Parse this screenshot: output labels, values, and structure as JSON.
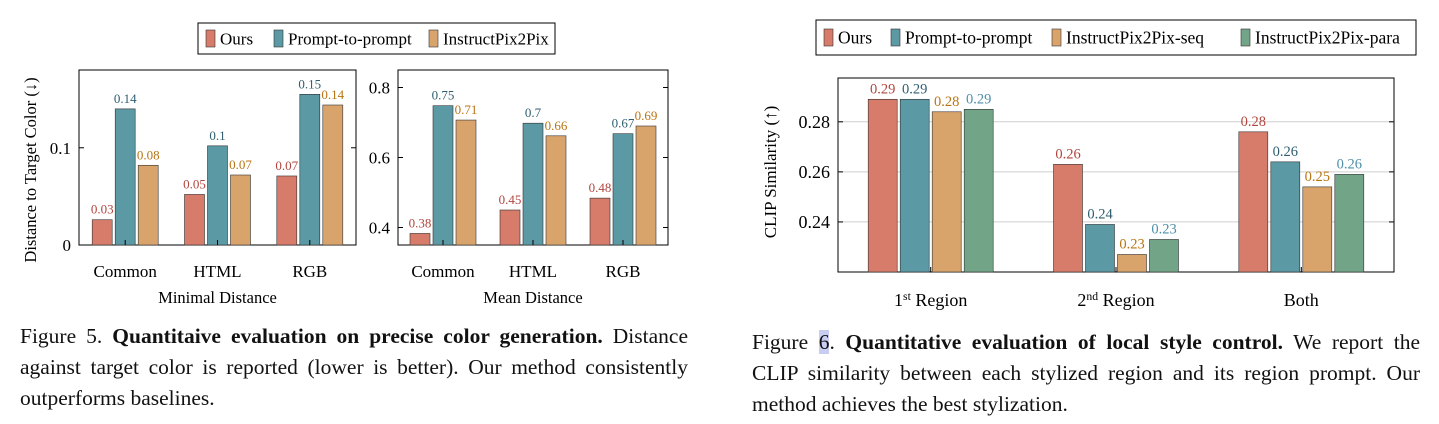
{
  "figure5": {
    "legend": [
      "Ours",
      "Prompt-to-prompt",
      "InstructPix2Pix"
    ],
    "y_label": "Distance to Target Color (↓)",
    "caption": {
      "prefix": "Figure 5.",
      "title": "Quantitaive evaluation on precise color generation.",
      "body": "Distance against target color is reported (lower is better). Our method consistently outperforms baselines."
    }
  },
  "figure6": {
    "legend": [
      "Ours",
      "Prompt-to-prompt",
      "InstructPix2Pix-seq",
      "InstructPix2Pix-para"
    ],
    "y_label": "CLIP Similarity (↑)",
    "caption": {
      "prefix": "Figure",
      "number": "6",
      "title": "Quantitative evaluation of local style control.",
      "body": "We report the CLIP similarity between each stylized region and its region prompt. Our method achieves the best stylization."
    }
  },
  "colors": {
    "ours": "#d77b6a",
    "p2p": "#5b99a4",
    "ip2p": "#d9a46c",
    "ip2p_para": "#72a487",
    "ours_label": "#b0463e",
    "p2p_label": "#2f5e70",
    "ip2p_label": "#b87414",
    "para_label": "#4f8fa8"
  },
  "chart_data": [
    {
      "type": "bar",
      "categories": [
        "Common",
        "HTML",
        "RGB"
      ],
      "xlabel": "Minimal Distance",
      "ylabel": "Distance to Target Color (↓)",
      "ylim": [
        0,
        0.18
      ],
      "yticks": [
        0,
        0.1
      ],
      "ytick_labels": [
        "0",
        "0.1"
      ],
      "series": [
        {
          "name": "Ours",
          "values": [
            0.026,
            0.052,
            0.071
          ],
          "labels": [
            "0.03",
            "0.05",
            "0.07"
          ]
        },
        {
          "name": "Prompt-to-prompt",
          "values": [
            0.14,
            0.102,
            0.155
          ],
          "labels": [
            "0.14",
            "0.1",
            "0.15"
          ]
        },
        {
          "name": "InstructPix2Pix",
          "values": [
            0.082,
            0.072,
            0.144
          ],
          "labels": [
            "0.08",
            "0.07",
            "0.14"
          ]
        }
      ]
    },
    {
      "type": "bar",
      "categories": [
        "Common",
        "HTML",
        "RGB"
      ],
      "xlabel": "Mean Distance",
      "ylabel": "",
      "ylim": [
        0.35,
        0.85
      ],
      "yticks": [
        0.4,
        0.6,
        0.8
      ],
      "ytick_labels": [
        "0.4",
        "0.6",
        "0.8"
      ],
      "series": [
        {
          "name": "Ours",
          "values": [
            0.383,
            0.45,
            0.484
          ],
          "labels": [
            "0.38",
            "0.45",
            "0.48"
          ]
        },
        {
          "name": "Prompt-to-prompt",
          "values": [
            0.748,
            0.698,
            0.668
          ],
          "labels": [
            "0.75",
            "0.7",
            "0.67"
          ]
        },
        {
          "name": "InstructPix2Pix",
          "values": [
            0.707,
            0.662,
            0.69
          ],
          "labels": [
            "0.71",
            "0.66",
            "0.69"
          ]
        }
      ]
    },
    {
      "type": "bar",
      "categories": [
        "1st Region",
        "2nd Region",
        "Both"
      ],
      "xlabel": "",
      "ylabel": "CLIP Similarity (↑)",
      "ylim": [
        0.22,
        0.2975
      ],
      "yticks": [
        0.24,
        0.26,
        0.28
      ],
      "ytick_labels": [
        "0.24",
        "0.26",
        "0.28"
      ],
      "series": [
        {
          "name": "Ours",
          "values": [
            0.289,
            0.263,
            0.276
          ],
          "labels": [
            "0.29",
            "0.26",
            "0.28"
          ]
        },
        {
          "name": "Prompt-to-prompt",
          "values": [
            0.289,
            0.239,
            0.264
          ],
          "labels": [
            "0.29",
            "0.24",
            "0.26"
          ]
        },
        {
          "name": "InstructPix2Pix-seq",
          "values": [
            0.284,
            0.227,
            0.254
          ],
          "labels": [
            "0.28",
            "0.23",
            "0.25"
          ]
        },
        {
          "name": "InstructPix2Pix-para",
          "values": [
            0.285,
            0.233,
            0.259
          ],
          "labels": [
            "0.29",
            "0.23",
            "0.26"
          ]
        }
      ]
    }
  ]
}
